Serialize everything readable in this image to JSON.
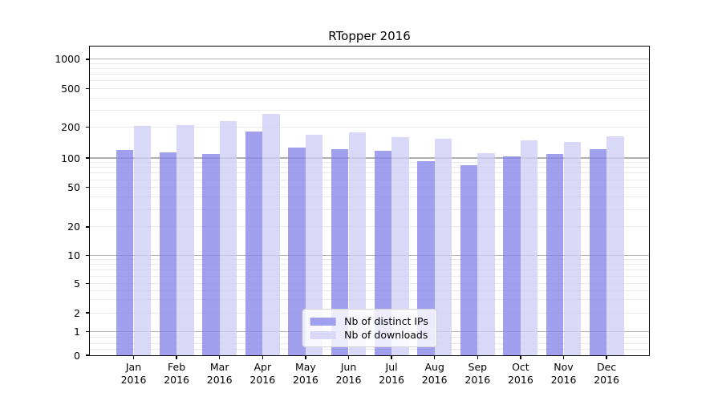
{
  "chart_data": {
    "type": "bar",
    "title": "RTopper 2016",
    "categories": [
      "Jan 2016",
      "Feb 2016",
      "Mar 2016",
      "Apr 2016",
      "May 2016",
      "Jun 2016",
      "Jul 2016",
      "Aug 2016",
      "Sep 2016",
      "Oct 2016",
      "Nov 2016",
      "Dec 2016"
    ],
    "series": [
      {
        "name": "Nb of distinct IPs",
        "color": "#a0a0ee",
        "values": [
          120,
          113,
          110,
          181,
          127,
          122,
          118,
          93,
          84,
          104,
          110,
          122
        ]
      },
      {
        "name": "Nb of downloads",
        "color": "#d9d9f7",
        "values": [
          208,
          209,
          232,
          274,
          169,
          180,
          161,
          154,
          111,
          150,
          143,
          163
        ]
      }
    ],
    "xlabel": "",
    "ylabel": "",
    "yscale": "log-like (symlog)",
    "yticks": [
      0,
      1,
      2,
      5,
      10,
      20,
      50,
      100,
      200,
      500,
      1000
    ],
    "ytick_labels": [
      "0",
      "1",
      "2",
      "5",
      "10",
      "20",
      "50",
      "100",
      "200",
      "500",
      "1000"
    ],
    "ylim": [
      0,
      1340
    ],
    "grid": true,
    "major_grid_values": [
      1,
      10,
      100,
      1000
    ],
    "minor_grid_values": [
      0.25,
      0.5,
      0.75,
      2,
      3,
      4,
      5,
      6,
      7,
      8,
      9,
      20,
      30,
      40,
      50,
      60,
      70,
      80,
      90,
      200,
      300,
      400,
      500,
      600,
      700,
      800,
      900
    ],
    "legend_position": "lower center",
    "colors": {
      "grid_major": "#b0b0b0",
      "grid_minor": "#e9e9e9",
      "spine": "#000000",
      "background": "#ffffff"
    }
  }
}
